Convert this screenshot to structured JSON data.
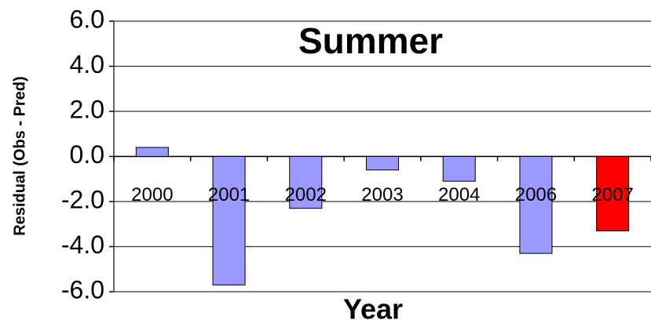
{
  "chart_data": {
    "type": "bar",
    "title": "Summer",
    "xlabel": "Year",
    "ylabel": "Residual (Obs - Pred)",
    "categories": [
      "2000",
      "2001",
      "2002",
      "2003",
      "2004",
      "2006",
      "2007"
    ],
    "values": [
      0.4,
      -5.7,
      -2.3,
      -0.6,
      -1.1,
      -4.3,
      -3.3
    ],
    "colors": [
      "#9999ff",
      "#9999ff",
      "#9999ff",
      "#9999ff",
      "#9999ff",
      "#9999ff",
      "#ff0000"
    ],
    "ylim": [
      -6,
      6
    ],
    "yticks": [
      {
        "value": -6,
        "label": "-6.0"
      },
      {
        "value": -4,
        "label": "-4.0"
      },
      {
        "value": -2,
        "label": "-2.0"
      },
      {
        "value": 0,
        "label": "0.0"
      },
      {
        "value": 2,
        "label": "2.0"
      },
      {
        "value": 4,
        "label": "4.0"
      },
      {
        "value": 6,
        "label": "6.0"
      }
    ],
    "grid": true
  }
}
